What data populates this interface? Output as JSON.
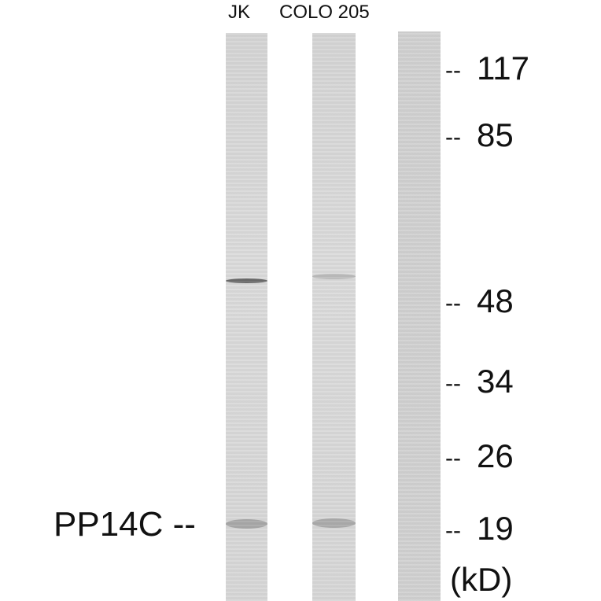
{
  "lanes": [
    {
      "label": "JK"
    },
    {
      "label": "COLO 205"
    },
    {
      "label": ""
    }
  ],
  "markers": [
    {
      "dash": "--",
      "value": "117"
    },
    {
      "dash": "--",
      "value": "85"
    },
    {
      "dash": "--",
      "value": "48"
    },
    {
      "dash": "--",
      "value": "34"
    },
    {
      "dash": "--",
      "value": "26"
    },
    {
      "dash": "--",
      "value": "19"
    }
  ],
  "unit": "(kD)",
  "target": {
    "name": "PP14C",
    "dash": "--"
  }
}
